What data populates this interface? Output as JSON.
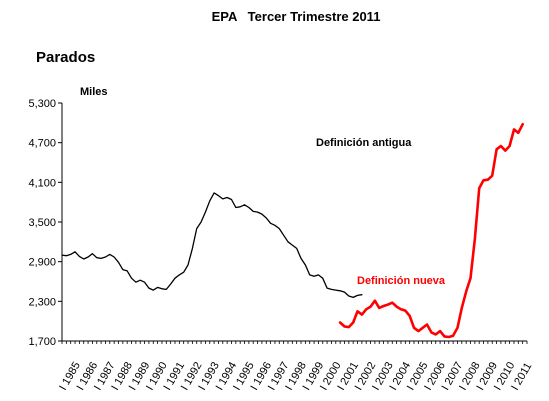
{
  "header": {
    "title": "EPA   Tercer Trimestre 2011",
    "section": "Parados"
  },
  "chart_data": {
    "type": "line",
    "title": "EPA   Tercer Trimestre 2011",
    "subtitle": "Parados",
    "ylabel": "Miles",
    "ylim": [
      1700,
      5300
    ],
    "yticks": [
      1700,
      2300,
      2900,
      3500,
      4100,
      4700,
      5300
    ],
    "ytick_labels": [
      "1,700",
      "2,300",
      "2,900",
      "3,500",
      "4,100",
      "4,700",
      "5,300"
    ],
    "xlim": [
      1985,
      2011.75
    ],
    "xticks": [
      1985,
      1986,
      1987,
      1988,
      1989,
      1990,
      1991,
      1992,
      1993,
      1994,
      1995,
      1996,
      1997,
      1998,
      1999,
      2000,
      2001,
      2002,
      2003,
      2004,
      2005,
      2006,
      2007,
      2008,
      2009,
      2010,
      2011
    ],
    "xtick_prefix": "I",
    "grid": false,
    "series": [
      {
        "name": "Definición antigua",
        "color": "#000000",
        "x": [
          1985,
          1985.25,
          1985.5,
          1985.75,
          1986,
          1986.25,
          1986.5,
          1986.75,
          1987,
          1987.25,
          1987.5,
          1987.75,
          1988,
          1988.25,
          1988.5,
          1988.75,
          1989,
          1989.25,
          1989.5,
          1989.75,
          1990,
          1990.25,
          1990.5,
          1990.75,
          1991,
          1991.25,
          1991.5,
          1991.75,
          1992,
          1992.25,
          1992.5,
          1992.75,
          1993,
          1993.25,
          1993.5,
          1993.75,
          1994,
          1994.25,
          1994.5,
          1994.75,
          1995,
          1995.25,
          1995.5,
          1995.75,
          1996,
          1996.25,
          1996.5,
          1996.75,
          1997,
          1997.25,
          1997.5,
          1997.75,
          1998,
          1998.25,
          1998.5,
          1998.75,
          1999,
          1999.25,
          1999.5,
          1999.75,
          2000,
          2000.25,
          2000.5,
          2000.75,
          2001,
          2001.25,
          2001.5,
          2001.75,
          2002,
          2002.25
        ],
        "y": [
          3000,
          2990,
          3010,
          3050,
          2980,
          2940,
          2970,
          3020,
          2960,
          2950,
          2970,
          3010,
          2970,
          2890,
          2780,
          2760,
          2650,
          2590,
          2620,
          2590,
          2500,
          2470,
          2510,
          2490,
          2480,
          2560,
          2650,
          2700,
          2740,
          2850,
          3100,
          3400,
          3500,
          3650,
          3820,
          3940,
          3900,
          3850,
          3870,
          3840,
          3720,
          3730,
          3760,
          3720,
          3660,
          3650,
          3620,
          3560,
          3480,
          3450,
          3400,
          3300,
          3200,
          3150,
          3100,
          2950,
          2850,
          2700,
          2680,
          2700,
          2650,
          2500,
          2480,
          2470,
          2460,
          2440,
          2380,
          2360,
          2390,
          2400
        ]
      },
      {
        "name": "Definición nueva",
        "color": "#ff0000",
        "x": [
          2001,
          2001.25,
          2001.5,
          2001.75,
          2002,
          2002.25,
          2002.5,
          2002.75,
          2003,
          2003.25,
          2003.5,
          2003.75,
          2004,
          2004.25,
          2004.5,
          2004.75,
          2005,
          2005.25,
          2005.5,
          2005.75,
          2006,
          2006.25,
          2006.5,
          2006.75,
          2007,
          2007.25,
          2007.5,
          2007.75,
          2008,
          2008.25,
          2008.5,
          2008.75,
          2009,
          2009.25,
          2009.5,
          2009.75,
          2010,
          2010.25,
          2010.5,
          2010.75,
          2011,
          2011.25,
          2011.5
        ],
        "y": [
          1980,
          1920,
          1910,
          1980,
          2150,
          2100,
          2180,
          2220,
          2310,
          2200,
          2230,
          2250,
          2280,
          2220,
          2180,
          2160,
          2080,
          1900,
          1850,
          1900,
          1950,
          1830,
          1800,
          1850,
          1770,
          1760,
          1780,
          1900,
          2200,
          2450,
          2650,
          3250,
          4010,
          4130,
          4140,
          4200,
          4600,
          4650,
          4580,
          4650,
          4900,
          4850,
          4980
        ]
      }
    ],
    "annotations": [
      "Definición antigua",
      "Definición nueva"
    ]
  }
}
